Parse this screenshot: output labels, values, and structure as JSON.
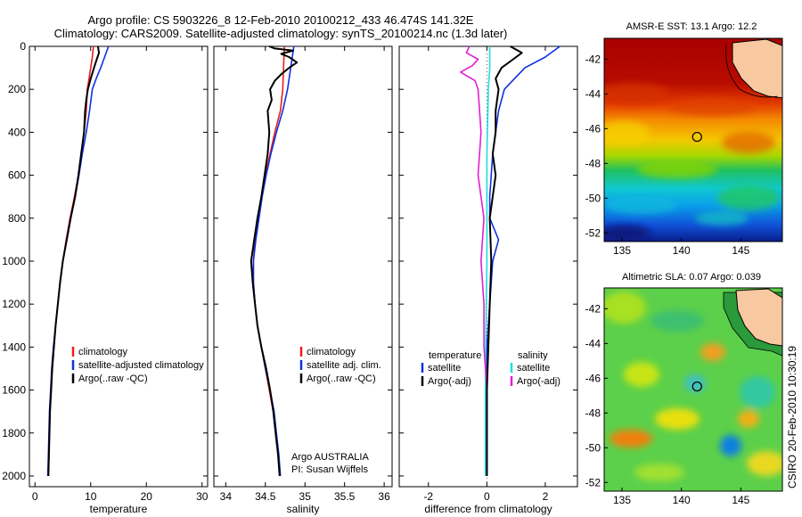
{
  "header": {
    "line1": "Argo profile: CS 5903226_8 12-Feb-2010 20100212_433 46.474S 141.32E",
    "line2": "Climatology: CARS2009. Satellite-adjusted climatology: synTS_20100214.nc (1.3d later)"
  },
  "colors": {
    "clim": "#ee1c1c",
    "sat": "#1030e0",
    "argo": "#000000",
    "sat_sal": "#22dddd",
    "argo_sal": "#e020d0"
  },
  "chart_data": [
    {
      "type": "line",
      "id": "temperature",
      "xlabel": "temperature",
      "xlim": [
        -1,
        31
      ],
      "ylim": [
        0,
        2050
      ],
      "yreverse": true,
      "xticks": [
        0,
        10,
        20,
        30
      ],
      "yticks": [
        0,
        200,
        400,
        600,
        800,
        1000,
        1200,
        1400,
        1600,
        1800,
        2000
      ],
      "legend": [
        "climatology",
        "satellite-adjusted climatology",
        "Argo(..raw -QC)"
      ],
      "series": [
        {
          "name": "climatology",
          "color": "clim",
          "points": [
            [
              10.5,
              0
            ],
            [
              10.3,
              50
            ],
            [
              10.0,
              100
            ],
            [
              9.7,
              150
            ],
            [
              9.4,
              200
            ],
            [
              9.2,
              300
            ],
            [
              8.8,
              400
            ],
            [
              8.3,
              500
            ],
            [
              7.8,
              600
            ],
            [
              7.1,
              700
            ],
            [
              6.3,
              800
            ],
            [
              5.6,
              900
            ],
            [
              5.0,
              1000
            ],
            [
              4.5,
              1100
            ],
            [
              4.1,
              1200
            ],
            [
              3.7,
              1300
            ],
            [
              3.4,
              1400
            ],
            [
              3.1,
              1500
            ],
            [
              2.9,
              1600
            ],
            [
              2.7,
              1700
            ],
            [
              2.6,
              1800
            ],
            [
              2.5,
              1900
            ],
            [
              2.4,
              2000
            ]
          ]
        },
        {
          "name": "satellite-adjusted climatology",
          "color": "sat",
          "points": [
            [
              13.2,
              0
            ],
            [
              12.5,
              50
            ],
            [
              11.8,
              100
            ],
            [
              11.0,
              150
            ],
            [
              10.3,
              200
            ],
            [
              9.8,
              300
            ],
            [
              9.2,
              400
            ],
            [
              8.5,
              500
            ],
            [
              7.9,
              600
            ],
            [
              7.2,
              700
            ],
            [
              6.4,
              800
            ],
            [
              5.7,
              900
            ],
            [
              5.0,
              1000
            ],
            [
              4.5,
              1100
            ],
            [
              4.1,
              1200
            ],
            [
              3.7,
              1300
            ],
            [
              3.3,
              1400
            ],
            [
              3.0,
              1500
            ],
            [
              2.8,
              1600
            ],
            [
              2.6,
              1700
            ],
            [
              2.5,
              1800
            ],
            [
              2.4,
              1900
            ],
            [
              2.3,
              2000
            ]
          ]
        },
        {
          "name": "Argo(..raw -QC)",
          "color": "argo",
          "points": [
            [
              11.3,
              0
            ],
            [
              11.5,
              30
            ],
            [
              11.1,
              60
            ],
            [
              10.6,
              100
            ],
            [
              10.0,
              150
            ],
            [
              9.5,
              200
            ],
            [
              9.2,
              250
            ],
            [
              9.0,
              300
            ],
            [
              8.8,
              400
            ],
            [
              8.3,
              500
            ],
            [
              7.8,
              600
            ],
            [
              7.2,
              700
            ],
            [
              6.4,
              800
            ],
            [
              5.7,
              900
            ],
            [
              5.0,
              1000
            ],
            [
              4.5,
              1100
            ],
            [
              4.1,
              1200
            ],
            [
              3.7,
              1300
            ],
            [
              3.4,
              1400
            ],
            [
              3.1,
              1500
            ],
            [
              2.9,
              1600
            ],
            [
              2.7,
              1700
            ],
            [
              2.6,
              1800
            ],
            [
              2.5,
              1900
            ],
            [
              2.4,
              2000
            ]
          ]
        }
      ]
    },
    {
      "type": "line",
      "id": "salinity",
      "xlabel": "salinity",
      "xlim": [
        33.85,
        36.1
      ],
      "ylim": [
        0,
        2050
      ],
      "yreverse": true,
      "xticks": [
        34,
        34.5,
        35,
        35.5,
        36
      ],
      "legend": [
        "climatology",
        "satellite adj. clim.",
        "Argo(..raw -QC)"
      ],
      "annotation": [
        "Argo AUSTRALIA",
        "PI: Susan Wijffels"
      ],
      "series": [
        {
          "name": "climatology",
          "color": "clim",
          "points": [
            [
              34.74,
              0
            ],
            [
              34.73,
              100
            ],
            [
              34.72,
              200
            ],
            [
              34.69,
              300
            ],
            [
              34.62,
              400
            ],
            [
              34.56,
              500
            ],
            [
              34.5,
              600
            ],
            [
              34.45,
              700
            ],
            [
              34.41,
              800
            ],
            [
              34.37,
              900
            ],
            [
              34.35,
              1000
            ],
            [
              34.35,
              1100
            ],
            [
              34.37,
              1200
            ],
            [
              34.4,
              1300
            ],
            [
              34.45,
              1400
            ],
            [
              34.5,
              1500
            ],
            [
              34.55,
              1600
            ],
            [
              34.6,
              1700
            ],
            [
              34.63,
              1800
            ],
            [
              34.66,
              1900
            ],
            [
              34.68,
              2000
            ]
          ]
        },
        {
          "name": "satellite adj. clim.",
          "color": "sat",
          "points": [
            [
              34.86,
              0
            ],
            [
              34.82,
              100
            ],
            [
              34.78,
              200
            ],
            [
              34.72,
              300
            ],
            [
              34.64,
              400
            ],
            [
              34.57,
              500
            ],
            [
              34.51,
              600
            ],
            [
              34.46,
              700
            ],
            [
              34.42,
              800
            ],
            [
              34.38,
              900
            ],
            [
              34.35,
              1000
            ],
            [
              34.35,
              1100
            ],
            [
              34.37,
              1200
            ],
            [
              34.4,
              1300
            ],
            [
              34.45,
              1400
            ],
            [
              34.5,
              1500
            ],
            [
              34.56,
              1600
            ],
            [
              34.61,
              1700
            ],
            [
              34.64,
              1800
            ],
            [
              34.67,
              1900
            ],
            [
              34.69,
              2000
            ]
          ]
        },
        {
          "name": "Argo(..raw -QC)",
          "color": "argo",
          "points": [
            [
              34.55,
              0
            ],
            [
              34.62,
              10
            ],
            [
              34.85,
              20
            ],
            [
              34.7,
              35
            ],
            [
              34.8,
              50
            ],
            [
              34.9,
              75
            ],
            [
              34.8,
              100
            ],
            [
              34.7,
              130
            ],
            [
              34.62,
              160
            ],
            [
              34.56,
              200
            ],
            [
              34.58,
              250
            ],
            [
              34.53,
              300
            ],
            [
              34.55,
              400
            ],
            [
              34.53,
              500
            ],
            [
              34.49,
              600
            ],
            [
              34.45,
              700
            ],
            [
              34.4,
              800
            ],
            [
              34.36,
              900
            ],
            [
              34.32,
              1000
            ],
            [
              34.34,
              1100
            ],
            [
              34.37,
              1200
            ],
            [
              34.4,
              1300
            ],
            [
              34.45,
              1400
            ],
            [
              34.51,
              1500
            ],
            [
              34.56,
              1600
            ],
            [
              34.6,
              1700
            ],
            [
              34.63,
              1800
            ],
            [
              34.66,
              1900
            ],
            [
              34.68,
              2000
            ]
          ]
        }
      ]
    },
    {
      "type": "line",
      "id": "difference",
      "xlabel": "difference from climatology",
      "xlim": [
        -3.0,
        3.1
      ],
      "ylim": [
        0,
        2050
      ],
      "yreverse": true,
      "xticks": [
        -2,
        0,
        2
      ],
      "legend_headers": [
        "temperature",
        "salinity"
      ],
      "legend": [
        "satellite",
        "Argo(-adj)",
        "satellite",
        "Argo(-adj)"
      ],
      "series": [
        {
          "name": "temperature satellite",
          "color": "sat",
          "points": [
            [
              2.5,
              0
            ],
            [
              2.0,
              50
            ],
            [
              1.3,
              100
            ],
            [
              0.6,
              200
            ],
            [
              0.4,
              300
            ],
            [
              0.3,
              400
            ],
            [
              0.2,
              500
            ],
            [
              0.1,
              700
            ],
            [
              0.1,
              800
            ],
            [
              0.4,
              900
            ],
            [
              0.2,
              1000
            ],
            [
              0.1,
              1200
            ],
            [
              0.0,
              1400
            ],
            [
              0.0,
              2000
            ]
          ]
        },
        {
          "name": "salinity satellite",
          "color": "sat_sal",
          "points": [
            [
              0.1,
              0
            ],
            [
              0.1,
              100
            ],
            [
              0.05,
              200
            ],
            [
              0.0,
              500
            ],
            [
              0.0,
              1000
            ],
            [
              -0.05,
              1500
            ],
            [
              -0.05,
              2000
            ]
          ]
        },
        {
          "name": "salinity Argo(-adj)",
          "color": "argo_sal",
          "points": [
            [
              -0.6,
              0
            ],
            [
              -0.7,
              30
            ],
            [
              -0.3,
              60
            ],
            [
              -0.5,
              90
            ],
            [
              -0.9,
              120
            ],
            [
              -0.4,
              160
            ],
            [
              -0.3,
              200
            ],
            [
              -0.2,
              400
            ],
            [
              -0.3,
              600
            ],
            [
              -0.1,
              800
            ],
            [
              -0.2,
              1000
            ],
            [
              -0.1,
              1200
            ],
            [
              -0.1,
              1400
            ],
            [
              0.0,
              1600
            ],
            [
              0.0,
              2000
            ]
          ]
        },
        {
          "name": "temperature Argo(-adj)",
          "color": "argo",
          "points": [
            [
              0.8,
              0
            ],
            [
              1.2,
              30
            ],
            [
              0.9,
              60
            ],
            [
              0.5,
              100
            ],
            [
              0.3,
              150
            ],
            [
              0.4,
              200
            ],
            [
              0.3,
              300
            ],
            [
              0.3,
              400
            ],
            [
              0.2,
              500
            ],
            [
              0.3,
              600
            ],
            [
              0.2,
              700
            ],
            [
              0.1,
              800
            ],
            [
              0.15,
              1000
            ],
            [
              0.1,
              1200
            ],
            [
              0.05,
              1400
            ],
            [
              0.0,
              1600
            ],
            [
              0.0,
              2000
            ]
          ]
        }
      ]
    },
    {
      "type": "heatmap",
      "id": "sst-map",
      "title": "AMSR-E SST: 13.1  Argo: 12.2",
      "xlim": [
        133.5,
        148.5
      ],
      "ylim": [
        -52.5,
        -40.8
      ],
      "xticks": [
        135,
        140,
        145
      ],
      "yticks": [
        -42,
        -44,
        -46,
        -48,
        -50,
        -52
      ],
      "float_position": {
        "lon": 141.32,
        "lat": -46.474
      },
      "value_bands": [
        {
          "lat_from": -40.8,
          "lat_to": -43.8,
          "label": "dark red"
        },
        {
          "lat_from": -43.8,
          "lat_to": -45.2,
          "label": "red-orange"
        },
        {
          "lat_from": -45.2,
          "lat_to": -47.0,
          "label": "yellow-orange"
        },
        {
          "lat_from": -47.0,
          "lat_to": -48.5,
          "label": "green"
        },
        {
          "lat_from": -48.5,
          "lat_to": -50.5,
          "label": "cyan"
        },
        {
          "lat_from": -50.5,
          "lat_to": -52.5,
          "label": "blue"
        }
      ]
    },
    {
      "type": "heatmap",
      "id": "sla-map",
      "title": "Altimetric SLA: 0.07  Argo: 0.039",
      "xlim": [
        133.5,
        148.5
      ],
      "ylim": [
        -52.5,
        -40.8
      ],
      "xticks": [
        135,
        140,
        145
      ],
      "yticks": [
        -42,
        -44,
        -46,
        -48,
        -50,
        -52
      ],
      "float_position": {
        "lon": 141.32,
        "lat": -46.474
      }
    }
  ],
  "footer": {
    "credit": "CSIRO 20-Feb-2010 10:30:19"
  }
}
